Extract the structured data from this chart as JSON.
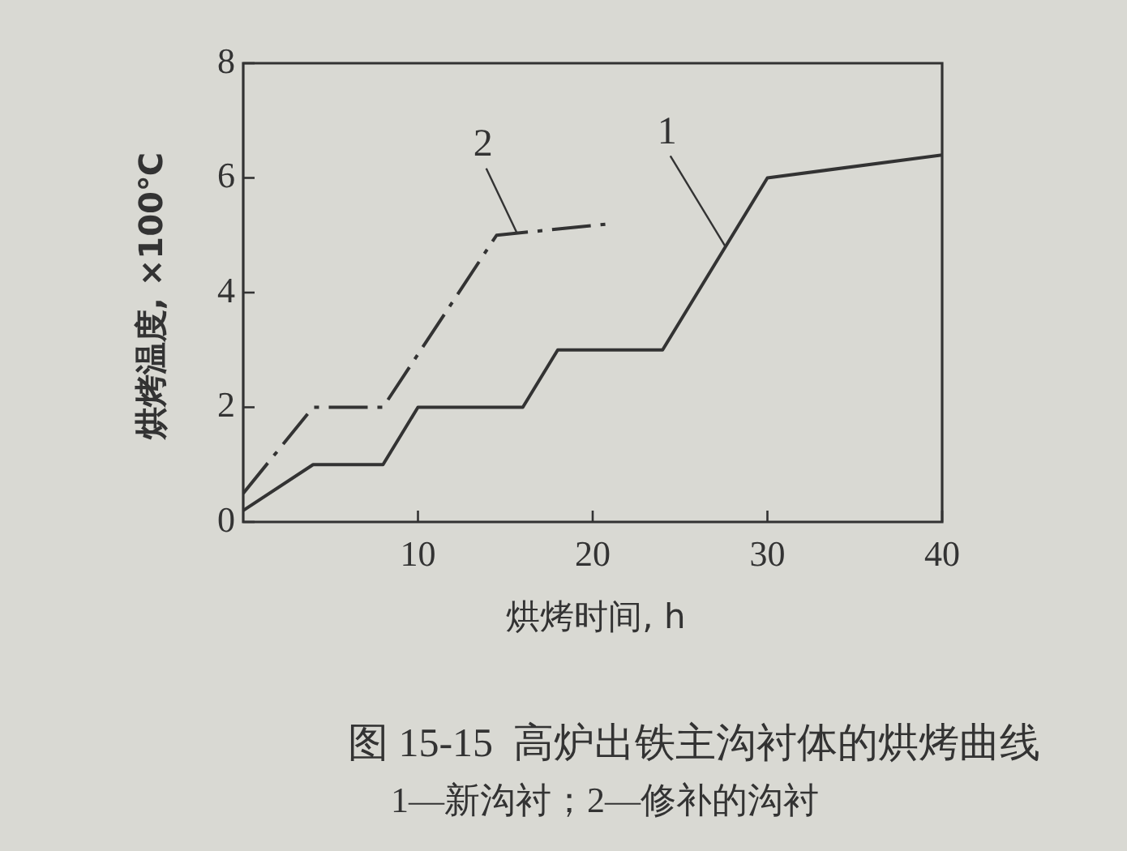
{
  "chart_data": {
    "type": "line",
    "title": "图 15-15  高炉出铁主沟衬体的烘烤曲线",
    "subtitle": "1—新沟衬；2—修补的沟衬",
    "xlabel": "烘烤时间, h",
    "ylabel": "烘烤温度, ×100℃",
    "xlim": [
      0,
      40
    ],
    "xticks": [
      10,
      20,
      30,
      40
    ],
    "ylim": [
      0,
      8
    ],
    "yticks": [
      0,
      2,
      4,
      6,
      8
    ],
    "series": [
      {
        "name": "1",
        "color": "#333333",
        "x": [
          0,
          4,
          8,
          10,
          16,
          18,
          24,
          30,
          40
        ],
        "values": [
          0.2,
          1,
          1,
          2,
          2,
          3,
          3,
          6,
          6.4
        ],
        "line_style": "solid"
      },
      {
        "name": "2",
        "color": "#333333",
        "x": [
          0,
          4,
          8,
          14.5,
          21
        ],
        "values": [
          0.5,
          2,
          2,
          5,
          5.2
        ],
        "line_style": "dashed"
      }
    ]
  }
}
